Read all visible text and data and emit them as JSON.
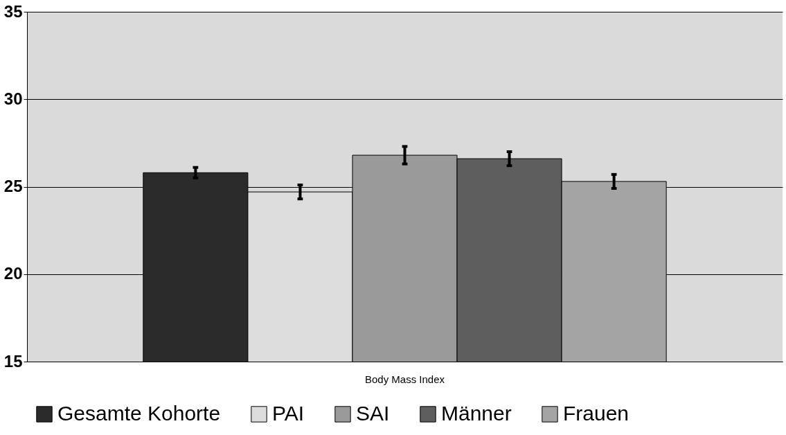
{
  "chart_data": {
    "type": "bar",
    "xlabel": null,
    "categories": [
      "Body Mass Index"
    ],
    "series": [
      {
        "name": "Gesamte Kohorte",
        "color": "#2b2b2b",
        "values": [
          25.8
        ],
        "errors": [
          0.3
        ]
      },
      {
        "name": "PAI",
        "color": "#dcdcdc",
        "values": [
          24.7
        ],
        "errors": [
          0.4
        ]
      },
      {
        "name": "SAI",
        "color": "#9a9a9a",
        "values": [
          26.8
        ],
        "errors": [
          0.5
        ]
      },
      {
        "name": "Männer",
        "color": "#5e5e5e",
        "values": [
          26.6
        ],
        "errors": [
          0.4
        ]
      },
      {
        "name": "Frauen",
        "color": "#a4a4a4",
        "values": [
          25.3
        ],
        "errors": [
          0.4
        ]
      }
    ],
    "ylim": [
      15,
      35
    ],
    "yticks": [
      15,
      20,
      25,
      30,
      35
    ],
    "grid": "y",
    "legend": "bottom"
  }
}
